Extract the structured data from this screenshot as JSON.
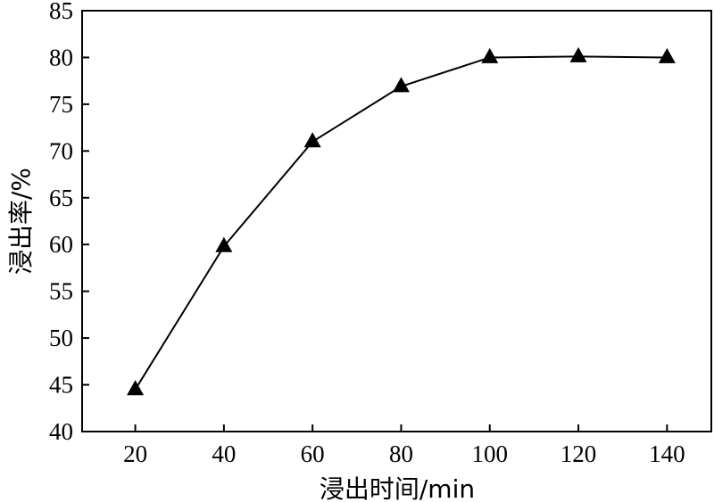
{
  "chart_data": {
    "type": "line",
    "title": "",
    "xlabel": "浸出时间/min",
    "ylabel": "浸出率/%",
    "x": [
      20,
      40,
      60,
      80,
      100,
      120,
      140
    ],
    "series": [
      {
        "name": "",
        "marker": "triangle",
        "color": "#000000",
        "values": [
          44.5,
          59.8,
          71.0,
          76.9,
          80.0,
          80.1,
          80.0
        ]
      }
    ],
    "xticks": [
      "20",
      "40",
      "60",
      "80",
      "100",
      "120",
      "140"
    ],
    "yticks": [
      "40",
      "45",
      "50",
      "55",
      "60",
      "65",
      "70",
      "75",
      "80",
      "85"
    ],
    "xlim": [
      8,
      150
    ],
    "ylim": [
      40,
      85
    ],
    "grid": false,
    "legend": "none"
  }
}
